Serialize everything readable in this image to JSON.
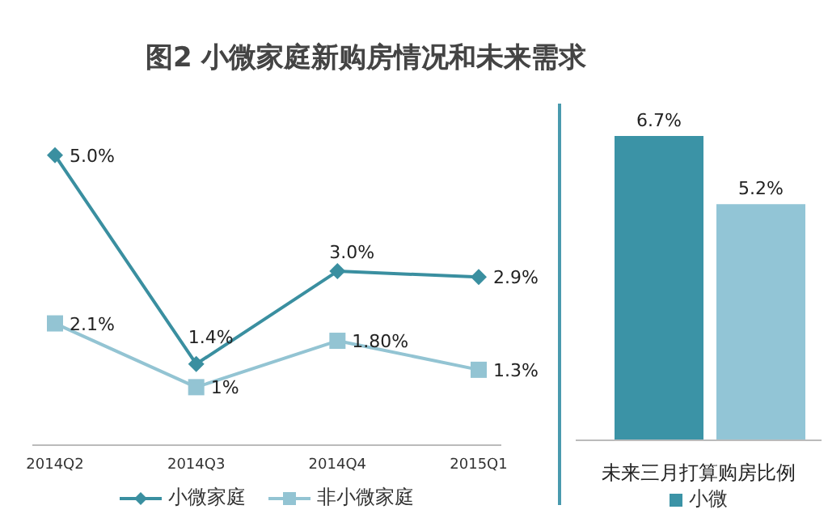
{
  "chart_data": [
    {
      "type": "line",
      "title": "图2  小微家庭新购房情况和未来需求",
      "categories": [
        "2014Q2",
        "2014Q3",
        "2014Q4",
        "2015Q1"
      ],
      "legend": "bottom",
      "series": [
        {
          "name": "小微家庭",
          "color": "#3a8fa0",
          "marker": "diamond",
          "values": [
            5.0,
            1.4,
            3.0,
            2.9
          ],
          "value_labels": [
            "5.0%",
            "1.4%",
            "3.0%",
            "2.9%"
          ]
        },
        {
          "name": "非小微家庭",
          "color": "#93c4d3",
          "marker": "square",
          "values": [
            2.1,
            1.0,
            1.8,
            1.3
          ],
          "value_labels": [
            "2.1%",
            "1%",
            "1.80%",
            "1.3%"
          ]
        }
      ]
    },
    {
      "type": "bar",
      "categories": [
        null,
        null
      ],
      "xlabel": "未来三月打算购房比例",
      "stacked": true,
      "legend": "bottom",
      "series": [
        {
          "name": "小微",
          "color": "#3b93a6",
          "values": [
            6.7,
            null
          ],
          "value_labels": [
            "6.7%",
            null
          ]
        },
        {
          "color": "#92c5d6",
          "values": [
            null,
            5.2
          ],
          "value_labels": [
            null,
            "5.2%"
          ]
        }
      ]
    }
  ]
}
